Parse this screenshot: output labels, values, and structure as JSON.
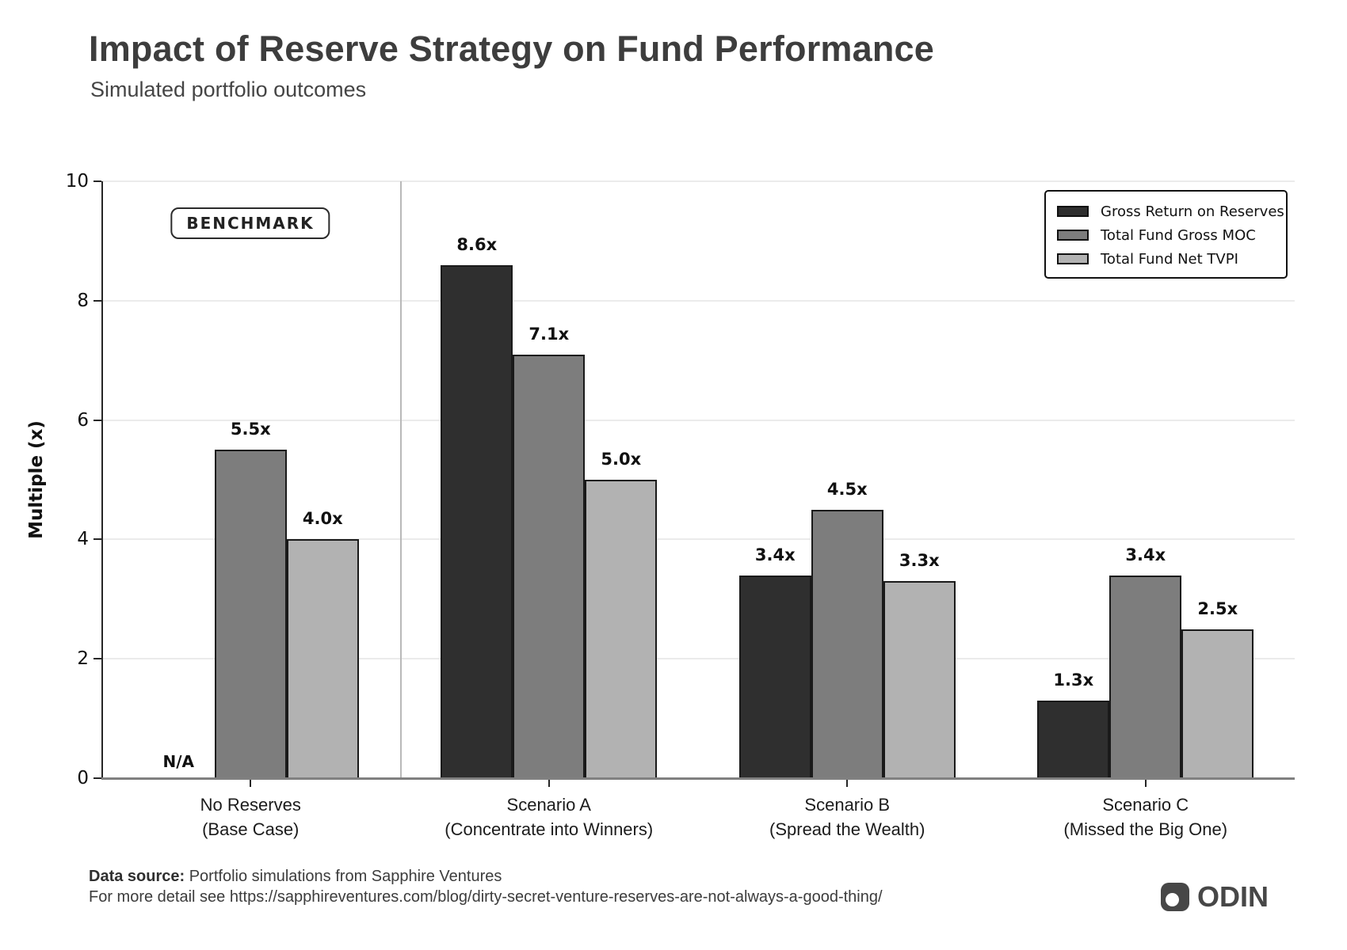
{
  "header": {
    "title": "Impact of Reserve Strategy on Fund Performance",
    "subtitle": "Simulated portfolio outcomes"
  },
  "chart_data": {
    "type": "bar",
    "title": "Impact of Reserve Strategy on Fund Performance",
    "subtitle": "Simulated portfolio outcomes",
    "ylabel": "Multiple (x)",
    "xlabel": "",
    "ylim": [
      0,
      10
    ],
    "yticks": [
      0,
      2,
      4,
      6,
      8,
      10
    ],
    "grid": true,
    "legend_position": "upper right",
    "categories": [
      {
        "lines": [
          "No Reserves",
          "(Base Case)"
        ]
      },
      {
        "lines": [
          "Scenario A",
          "(Concentrate into Winners)"
        ]
      },
      {
        "lines": [
          "Scenario B",
          "(Spread the Wealth)"
        ]
      },
      {
        "lines": [
          "Scenario C",
          "(Missed the Big One)"
        ]
      }
    ],
    "series": [
      {
        "name": "Gross Return on Reserves",
        "color": "#2f2f2f",
        "values": [
          null,
          8.6,
          3.4,
          1.3
        ],
        "value_labels": [
          "N/A",
          "8.6x",
          "3.4x",
          "1.3x"
        ]
      },
      {
        "name": "Total Fund Gross MOC",
        "color": "#7d7d7d",
        "values": [
          5.5,
          7.1,
          4.5,
          3.4
        ],
        "value_labels": [
          "5.5x",
          "7.1x",
          "4.5x",
          "3.4x"
        ]
      },
      {
        "name": "Total Fund Net TVPI",
        "color": "#b2b2b2",
        "values": [
          4.0,
          5.0,
          3.3,
          2.5
        ],
        "value_labels": [
          "4.0x",
          "5.0x",
          "3.3x",
          "2.5x"
        ]
      }
    ],
    "annotations": [
      {
        "text": "BENCHMARK",
        "category_index": 0
      }
    ],
    "divider_after_category_index": 0
  },
  "footer": {
    "source_label": "Data source:",
    "source_text": " Portfolio simulations from Sapphire Ventures",
    "detail_text": "For more detail see https://sapphireventures.com/blog/dirty-secret-venture-reserves-are-not-always-a-good-thing/"
  },
  "logo": {
    "text": "ODIN"
  }
}
